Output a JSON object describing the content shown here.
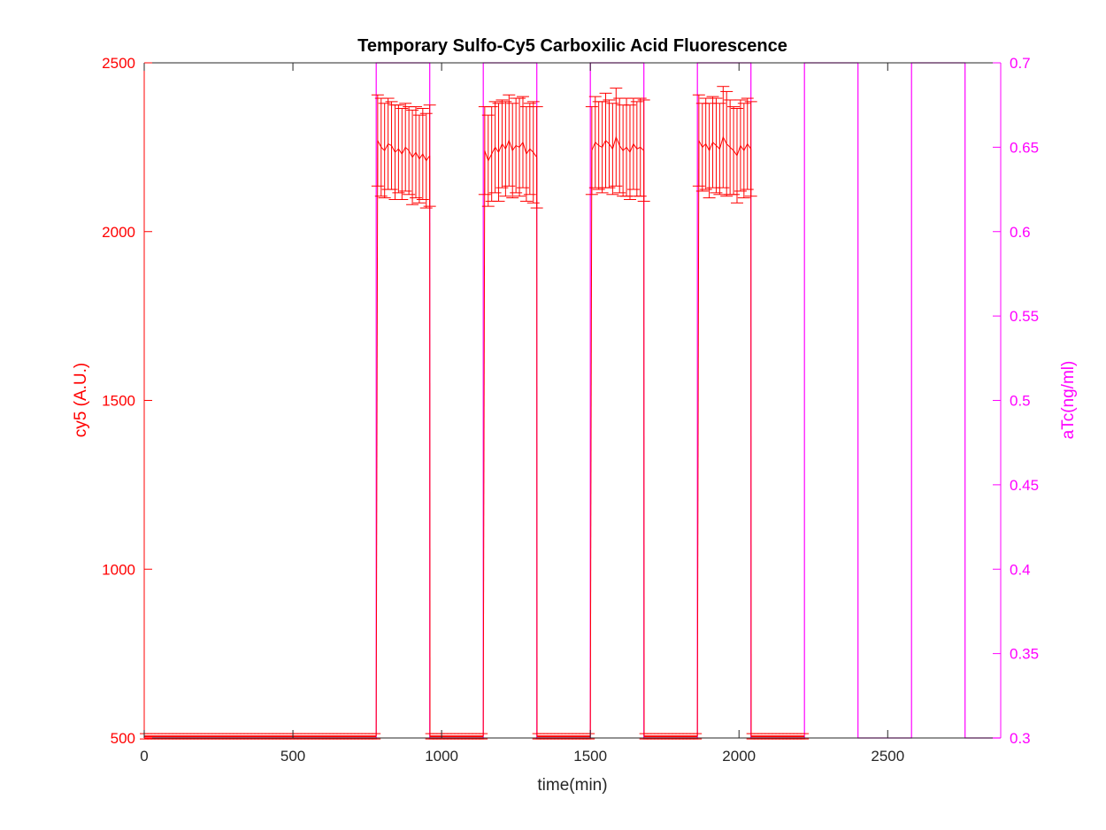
{
  "chart_data": {
    "type": "line",
    "title": "Temporary Sulfo-Cy5 Carboxilic Acid Fluorescence",
    "xlabel": "time(min)",
    "ylabel_left": "cy5 (A.U.)",
    "ylabel_right": "aTc(ng/ml)",
    "xlim": [
      0,
      2880
    ],
    "ylim_left": [
      500,
      2500
    ],
    "ylim_right": [
      0.3,
      0.7
    ],
    "x_ticks": [
      "0",
      "500",
      "1000",
      "1500",
      "2000",
      "2500"
    ],
    "y_ticks_left": [
      "500",
      "1000",
      "1500",
      "2000",
      "2500"
    ],
    "y_ticks_right": [
      "0.3",
      "0.35",
      "0.4",
      "0.45",
      "0.5",
      "0.55",
      "0.6",
      "0.65",
      "0.7"
    ],
    "grid": false,
    "colors": {
      "cy5": "#ff0000",
      "aTc": "#ff00ff",
      "title": "#000000",
      "axis": "#262626"
    },
    "series": [
      {
        "name": "aTc",
        "axis": "right",
        "style": "step",
        "x": [
          0,
          780,
          780,
          960,
          960,
          1140,
          1140,
          1320,
          1320,
          1500,
          1500,
          1680,
          1680,
          1860,
          1860,
          2040,
          2040,
          2220,
          2220,
          2400,
          2400,
          2580,
          2580,
          2760,
          2760,
          2880
        ],
        "y": [
          0.3,
          0.3,
          0.7,
          0.7,
          0.3,
          0.3,
          0.7,
          0.7,
          0.3,
          0.3,
          0.7,
          0.7,
          0.3,
          0.3,
          0.7,
          0.7,
          0.3,
          0.3,
          0.7,
          0.7,
          0.3,
          0.3,
          0.7,
          0.7,
          0.3,
          0.3
        ]
      },
      {
        "name": "cy5",
        "axis": "left",
        "style": "errorbar",
        "segments": [
          {
            "x_start": 0,
            "x_end": 780,
            "kind": "flat",
            "value": 505
          },
          {
            "x_start": 785,
            "x_end": 960,
            "kind": "pulse",
            "values": [
              2270,
              2250,
              2240,
              2260,
              2255,
              2235,
              2245,
              2230,
              2250,
              2240,
              2220,
              2235,
              2215,
              2230,
              2210,
              2225
            ],
            "err": [
              135,
              145,
              140,
              135,
              130,
              140,
              130,
              135,
              130,
              130,
              140,
              135,
              130,
              135,
              140,
              150
            ]
          },
          {
            "x_start": 960,
            "x_end": 1140,
            "kind": "flat",
            "value": 505
          },
          {
            "x_start": 1145,
            "x_end": 1320,
            "kind": "pulse",
            "values": [
              2240,
              2210,
              2230,
              2250,
              2235,
              2260,
              2245,
              2270,
              2240,
              2255,
              2250,
              2265,
              2230,
              2245,
              2235,
              2220
            ],
            "err": [
              130,
              135,
              140,
              135,
              145,
              130,
              140,
              135,
              140,
              140,
              145,
              135,
              140,
              135,
              150,
              150
            ]
          },
          {
            "x_start": 1320,
            "x_end": 1500,
            "kind": "flat",
            "value": 505
          },
          {
            "x_start": 1505,
            "x_end": 1680,
            "kind": "pulse",
            "values": [
              2240,
              2265,
              2255,
              2250,
              2270,
              2260,
              2245,
              2280,
              2255,
              2240,
              2250,
              2235,
              2260,
              2245,
              2250,
              2240
            ],
            "err": [
              130,
              135,
              130,
              135,
              140,
              130,
              135,
              145,
              140,
              135,
              145,
              140,
              135,
              140,
              145,
              150
            ]
          },
          {
            "x_start": 1680,
            "x_end": 1860,
            "kind": "flat",
            "value": 505
          },
          {
            "x_start": 1865,
            "x_end": 2040,
            "kind": "pulse",
            "values": [
              2270,
              2250,
              2260,
              2240,
              2265,
              2255,
              2245,
              2280,
              2260,
              2250,
              2240,
              2225,
              2255,
              2240,
              2260,
              2245
            ],
            "err": [
              135,
              130,
              135,
              140,
              135,
              140,
              135,
              150,
              155,
              140,
              130,
              140,
              135,
              140,
              135,
              140
            ]
          },
          {
            "x_start": 2040,
            "x_end": 2220,
            "kind": "flat",
            "value": 505
          }
        ]
      }
    ]
  }
}
